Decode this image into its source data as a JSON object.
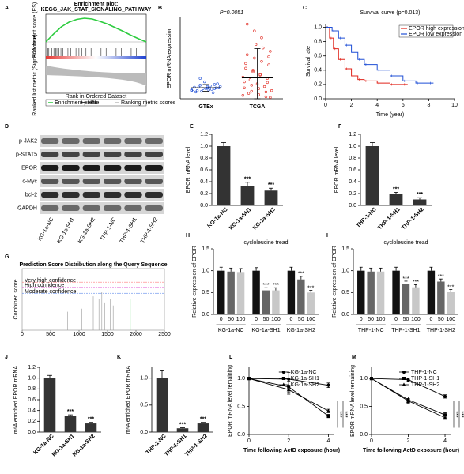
{
  "chart_data": [
    {
      "panel": "A",
      "type": "enrichment",
      "title": "Enrichment plot:",
      "subtitle": "KEGG_JAK_STAT_SIGNALING_PATHWAY",
      "ylabel": "Enrichment score (ES)",
      "y2label": "Ranked list metric (Signal2Noise)",
      "xlabel": "Rank in Ordered Dataset",
      "ylim": [
        -0.1,
        0.7
      ],
      "series": [
        {
          "name": "Enrichment profile",
          "color": "#2ecc40",
          "values": [
            0,
            0.2,
            0.38,
            0.5,
            0.57,
            0.6,
            0.58,
            0.52,
            0.45,
            0.36,
            0.27,
            0.17,
            0.08,
            0
          ]
        }
      ],
      "hits": {
        "name": "Hits",
        "color": "#000000",
        "x": [
          0.01,
          0.02,
          0.03,
          0.05,
          0.06,
          0.08,
          0.1,
          0.11,
          0.13,
          0.15,
          0.17,
          0.2,
          0.22,
          0.25,
          0.28,
          0.3,
          0.33,
          0.36,
          0.4,
          0.45,
          0.5,
          0.55,
          0.6,
          0.65,
          0.7,
          0.75,
          0.8,
          0.85,
          0.9,
          0.95
        ]
      },
      "metric": {
        "name": "Ranking metric scores",
        "color": "#bbbbbb"
      },
      "xlim": [
        0,
        1
      ]
    },
    {
      "panel": "B",
      "type": "scatter_dot",
      "annotation": "P=0.0051",
      "ylabel": "EPOR mRNA expression",
      "ylim": [
        0,
        12
      ],
      "categories": [
        "GTEx",
        "TCGA"
      ],
      "colors": [
        "#1f4fd6",
        "#e0241b"
      ],
      "points": [
        [
          1.2,
          1.5,
          1.8,
          2.0,
          1.4,
          1.6,
          1.3,
          1.1,
          1.7,
          2.2,
          1.9,
          1.5,
          1.0,
          1.6,
          1.4,
          2.5,
          1.2,
          1.8,
          0.9,
          1.5,
          1.7,
          1.3,
          2.1,
          1.6,
          3.0
        ],
        [
          0.5,
          1,
          1.5,
          2,
          2.5,
          3,
          3.5,
          4,
          4.5,
          5,
          5.5,
          6,
          6.5,
          7,
          7.5,
          8,
          0.8,
          1.2,
          1.8,
          2.2,
          2.8,
          3.2,
          0.3,
          0.6,
          1.1,
          1.6,
          2.4,
          3.6,
          4.2,
          5.2,
          6.2,
          9,
          10,
          11,
          0.2
        ]
      ],
      "means": [
        1.6,
        3.1
      ],
      "errors": [
        0.5,
        4.3
      ]
    },
    {
      "panel": "C",
      "type": "survival",
      "title": "Survival curve (p=0.013)",
      "xlabel": "Time (year)",
      "ylabel": "Survival rate",
      "xlim": [
        0,
        10
      ],
      "xticks": [
        0,
        2,
        4,
        6,
        8,
        10
      ],
      "ylim": [
        0,
        1.05
      ],
      "yticks": [
        {
          "value": 0,
          "label": "0.0"
        },
        0.2,
        0.4,
        0.6,
        0.8,
        {
          "value": 1,
          "label": "1.0"
        }
      ],
      "series": [
        {
          "name": "EPOR high expression",
          "color": "#e0241b",
          "x": [
            0,
            0.3,
            0.6,
            1,
            1.5,
            2,
            2.5,
            3,
            4,
            5,
            6
          ],
          "values": [
            1,
            0.85,
            0.7,
            0.55,
            0.42,
            0.32,
            0.27,
            0.25,
            0.22,
            0.2,
            0.2
          ]
        },
        {
          "name": "EPOR low expression",
          "color": "#1f4fd6",
          "x": [
            0,
            0.5,
            1,
            1.5,
            2,
            2.5,
            3,
            4,
            5,
            6,
            7,
            8
          ],
          "values": [
            1,
            0.95,
            0.85,
            0.75,
            0.65,
            0.55,
            0.48,
            0.4,
            0.32,
            0.25,
            0.22,
            0.22
          ]
        }
      ]
    },
    {
      "panel": "D",
      "type": "western_blot",
      "rows": [
        "p-JAK2",
        "p-STAT5",
        "EPOR",
        "c-Myc",
        "bcl-2",
        "GAPDH"
      ],
      "lanes": [
        "KG-1a-NC",
        "KG-1a-SH1",
        "KG-1a-SH2",
        "THP-1-NC",
        "THP-1-SH1",
        "THP-1-SH2"
      ]
    },
    {
      "panel": "E",
      "type": "bar",
      "ylabel": "EPOR mRNA level",
      "color": "#333333",
      "categories": [
        "KG-1a-NC",
        "KG-1a-SH1",
        "KG-1a-SH2"
      ],
      "values": [
        1.0,
        0.33,
        0.25
      ],
      "errors": [
        0.06,
        0.06,
        0.04
      ],
      "significance": [
        null,
        "***",
        "***"
      ],
      "ylim": [
        0,
        1.2
      ],
      "yticks": [
        {
          "value": 0,
          "label": "0.0"
        },
        0.2,
        0.4,
        0.6,
        0.8,
        {
          "value": 1,
          "label": "1.0"
        },
        1.2
      ]
    },
    {
      "panel": "F",
      "type": "bar",
      "ylabel": "EPOR mRNA level",
      "color": "#333333",
      "categories": [
        "THP-1-NC",
        "THP-1-SH1",
        "THP-1-SH2"
      ],
      "values": [
        1.0,
        0.2,
        0.1
      ],
      "errors": [
        0.06,
        0.02,
        0.03
      ],
      "significance": [
        null,
        "***",
        "***"
      ],
      "ylim": [
        0,
        1.2
      ],
      "yticks": [
        {
          "value": 0,
          "label": "0.0"
        },
        0.2,
        0.4,
        0.6,
        0.8,
        {
          "value": 1,
          "label": "1.0"
        },
        1.2
      ]
    },
    {
      "panel": "G",
      "type": "prediction",
      "title": "Prediction Score Distribution along the Query Sequence",
      "ylabel": "Combined score",
      "xlim": [
        0,
        2500
      ],
      "xticks": [
        0,
        500,
        1000,
        1500,
        2000,
        2500
      ],
      "ylim": [
        0,
        1
      ],
      "series": [
        {
          "name": "Very high confidence",
          "color": "#ff5a5a",
          "value": 0.78
        },
        {
          "name": "High confidence",
          "color": "#e05ad8",
          "value": 0.7
        },
        {
          "name": "Moderate confidence",
          "color": "#3a6ee8",
          "value": 0.6
        }
      ],
      "peaks": {
        "x": [
          800,
          1050,
          1250,
          1300,
          1350,
          1400,
          1450,
          1550,
          1600,
          1900
        ],
        "values": [
          0.3,
          0.35,
          0.55,
          0.6,
          0.5,
          0.62,
          0.45,
          0.5,
          0.4,
          0.5
        ],
        "colors": [
          "#999999",
          "#999999",
          "#999999",
          "#999999",
          "#999999",
          "#999999",
          "#999999",
          "#999999",
          "#999999",
          "#2ecc40"
        ]
      }
    },
    {
      "panel": "H",
      "type": "grouped_bar",
      "title": "cycloleucine tread",
      "ylabel": "Relative expression of EPOR",
      "categories": [
        "KG-1a-NC",
        "KG-1a-SH1",
        "KG-1a-SH2"
      ],
      "ylim": [
        0,
        1.5
      ],
      "yticks": [
        {
          "value": 0,
          "label": "0.0"
        },
        0.5,
        {
          "value": 1,
          "label": "1.0"
        },
        1.5
      ],
      "series": [
        {
          "name": "0",
          "color": "#111111",
          "values": [
            1.0,
            1.0,
            1.0
          ],
          "errors": [
            0.08,
            0.07,
            0.08
          ],
          "significance": [
            null,
            null,
            null
          ]
        },
        {
          "name": "50",
          "color": "#666666",
          "values": [
            0.98,
            0.55,
            0.8
          ],
          "errors": [
            0.08,
            0.06,
            0.07
          ],
          "significance": [
            null,
            "***",
            "***"
          ]
        },
        {
          "name": "100",
          "color": "#c8c8c8",
          "values": [
            0.97,
            0.55,
            0.5
          ],
          "errors": [
            0.08,
            0.06,
            0.05
          ],
          "significance": [
            null,
            "***",
            "***"
          ]
        }
      ]
    },
    {
      "panel": "I",
      "type": "grouped_bar",
      "title": "cycloleucine tread",
      "ylabel": "Relative expression of EPOR",
      "categories": [
        "THP-1-NC",
        "THP-1-SH1",
        "THP-1-SH2"
      ],
      "ylim": [
        0,
        1.5
      ],
      "yticks": [
        {
          "value": 0,
          "label": "0.0"
        },
        0.5,
        {
          "value": 1,
          "label": "1.0"
        },
        1.5
      ],
      "series": [
        {
          "name": "0",
          "color": "#111111",
          "values": [
            1.0,
            1.0,
            1.0
          ],
          "errors": [
            0.08,
            0.08,
            0.08
          ],
          "significance": [
            null,
            null,
            null
          ]
        },
        {
          "name": "50",
          "color": "#666666",
          "values": [
            0.98,
            0.7,
            0.75
          ],
          "errors": [
            0.08,
            0.06,
            0.06
          ],
          "significance": [
            null,
            "***",
            "***"
          ]
        },
        {
          "name": "100",
          "color": "#c8c8c8",
          "values": [
            0.98,
            0.62,
            0.52
          ],
          "errors": [
            0.08,
            0.06,
            0.05
          ],
          "significance": [
            null,
            "***",
            "***"
          ]
        }
      ]
    },
    {
      "panel": "J",
      "type": "bar",
      "ylabel": "m⁶A enriched EPOR mRNA",
      "color": "#333333",
      "categories": [
        "KG-1a-NC",
        "KG-1a-SH1",
        "KG-1a-SH2"
      ],
      "values": [
        1.0,
        0.3,
        0.16
      ],
      "errors": [
        0.05,
        0.02,
        0.02
      ],
      "significance": [
        null,
        "***",
        "***"
      ],
      "ylim": [
        0,
        1.2
      ],
      "yticks": [
        {
          "value": 0,
          "label": "0.0"
        },
        0.2,
        0.4,
        0.6,
        0.8,
        {
          "value": 1,
          "label": "1.0"
        },
        1.2
      ]
    },
    {
      "panel": "K",
      "type": "bar",
      "ylabel": "m⁶A enriched EPOR mRNA",
      "color": "#333333",
      "categories": [
        "THP-1-NC",
        "THP-1-SH1",
        "THP-1-SH2"
      ],
      "values": [
        1.0,
        0.07,
        0.16
      ],
      "errors": [
        0.15,
        0.01,
        0.02
      ],
      "significance": [
        null,
        "***",
        "***"
      ],
      "ylim": [
        0,
        1.2
      ],
      "yticks": [
        {
          "value": 0,
          "label": "0.0"
        },
        0.5,
        {
          "value": 1,
          "label": "1.0"
        }
      ]
    },
    {
      "panel": "L",
      "type": "line",
      "xlabel": "Time following ActD exposure (hour)",
      "ylabel": "EPOR mRNA level remaining",
      "x": [
        0,
        2,
        4
      ],
      "xlim": [
        0,
        4.3
      ],
      "xticks": [
        0,
        2,
        4
      ],
      "ylim": [
        0,
        1.2
      ],
      "yticks": [
        {
          "value": 0,
          "label": "0.0"
        },
        0.5,
        {
          "value": 1,
          "label": "1.0"
        }
      ],
      "series": [
        {
          "name": "KG-1a-NC",
          "color": "#000000",
          "values": [
            1.0,
            0.99,
            0.88
          ],
          "errors": [
            0.02,
            0.12,
            0.04
          ]
        },
        {
          "name": "KG-1a-SH1",
          "color": "#000000",
          "values": [
            1.0,
            0.85,
            0.33
          ],
          "errors": [
            0.02,
            0.1,
            0.03
          ]
        },
        {
          "name": "KG-1a-SH2",
          "color": "#000000",
          "values": [
            1.0,
            0.8,
            0.42
          ],
          "errors": [
            0.02,
            0.08,
            0.03
          ]
        }
      ],
      "significance": [
        "***",
        "***"
      ]
    },
    {
      "panel": "M",
      "type": "line",
      "xlabel": "Time following ActD exposure (hour)",
      "ylabel": "EPOR mRNA level remaining",
      "x": [
        0,
        2,
        4
      ],
      "xlim": [
        0,
        4.3
      ],
      "xticks": [
        0,
        2,
        4
      ],
      "ylim": [
        0,
        1.2
      ],
      "yticks": [
        {
          "value": 0,
          "label": "0.0"
        },
        0.5,
        {
          "value": 1,
          "label": "1.0"
        }
      ],
      "series": [
        {
          "name": "THP-1-NC",
          "color": "#000000",
          "values": [
            1.0,
            0.98,
            0.68
          ],
          "errors": [
            0.02,
            0.03,
            0.03
          ]
        },
        {
          "name": "THP-1-SH1",
          "color": "#000000",
          "values": [
            1.0,
            0.62,
            0.35
          ],
          "errors": [
            0.02,
            0.05,
            0.04
          ]
        },
        {
          "name": "THP-1-SH2",
          "color": "#000000",
          "values": [
            1.0,
            0.6,
            0.3
          ],
          "errors": [
            0.02,
            0.04,
            0.03
          ]
        }
      ],
      "significance": [
        "***",
        "***"
      ]
    }
  ]
}
